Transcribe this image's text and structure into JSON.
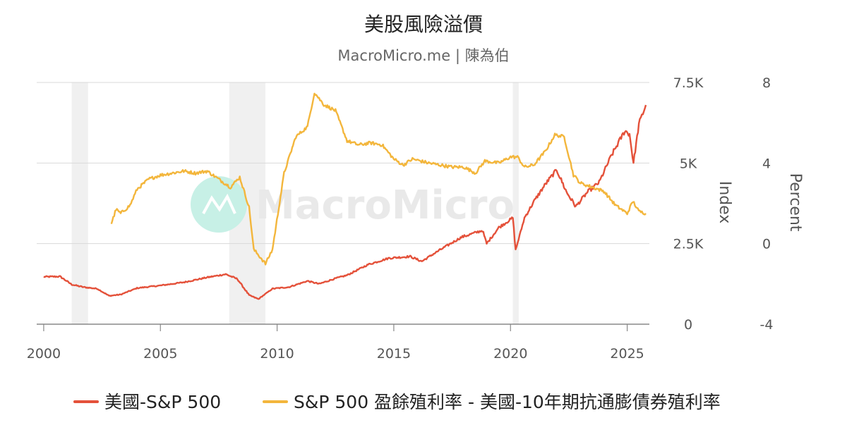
{
  "title": "美股風險溢價",
  "subtitle": "MacroMicro.me | 陳為伯",
  "watermark": "MacroMicro",
  "chart_data": {
    "type": "line",
    "title": "美股風險溢價",
    "x_ticks": [
      "2000",
      "2005",
      "2010",
      "2015",
      "2020",
      "2025"
    ],
    "x_range": [
      1999.7,
      2025.95
    ],
    "recessions": [
      [
        2001.2,
        2001.9
      ],
      [
        2007.95,
        2009.5
      ],
      [
        2020.1,
        2020.35
      ]
    ],
    "y_left": {
      "label": "Index",
      "range": [
        0,
        7500
      ],
      "ticks": [
        0,
        2500,
        5000,
        7500
      ],
      "tick_labels": [
        "0",
        "2.5K",
        "5K",
        "7.5K"
      ]
    },
    "y_right": {
      "label": "Percent",
      "range": [
        -4,
        8
      ],
      "ticks": [
        -4,
        0,
        4,
        8
      ],
      "tick_labels": [
        "-4",
        "0",
        "4",
        "8"
      ]
    },
    "grid": true,
    "legend_position": "bottom",
    "series": [
      {
        "name": "美國-S&P 500",
        "axis": "left",
        "color": "#e4513a",
        "x": [
          2000.0,
          2000.7,
          2001.2,
          2001.7,
          2002.3,
          2002.8,
          2003.3,
          2004.0,
          2005.0,
          2006.0,
          2007.0,
          2007.8,
          2008.3,
          2008.8,
          2009.2,
          2009.8,
          2010.5,
          2011.3,
          2011.8,
          2012.5,
          2013.0,
          2013.9,
          2014.8,
          2015.7,
          2016.2,
          2016.9,
          2017.9,
          2018.8,
          2018.98,
          2019.5,
          2020.1,
          2020.22,
          2020.6,
          2021.0,
          2021.5,
          2021.98,
          2022.4,
          2022.8,
          2023.3,
          2023.8,
          2024.3,
          2024.9,
          2025.1,
          2025.27,
          2025.5,
          2025.8
        ],
        "values": [
          1470,
          1480,
          1230,
          1150,
          1100,
          880,
          920,
          1120,
          1200,
          1300,
          1450,
          1550,
          1400,
          900,
          780,
          1100,
          1150,
          1340,
          1250,
          1420,
          1520,
          1850,
          2050,
          2100,
          1950,
          2270,
          2700,
          2910,
          2500,
          3000,
          3300,
          2300,
          3300,
          3800,
          4350,
          4790,
          4100,
          3650,
          4100,
          4400,
          5200,
          6000,
          5900,
          5000,
          6200,
          6800
        ]
      },
      {
        "name": "S&P 500 盈餘殖利率 - 美國-10年期抗通膨債券殖利率",
        "axis": "right",
        "color": "#f3b63c",
        "x": [
          2002.9,
          2003.1,
          2003.3,
          2003.7,
          2004.0,
          2004.5,
          2005.0,
          2005.5,
          2006.0,
          2006.5,
          2007.0,
          2007.5,
          2008.0,
          2008.4,
          2008.8,
          2009.0,
          2009.3,
          2009.5,
          2009.8,
          2010.3,
          2010.8,
          2011.3,
          2011.6,
          2012.0,
          2012.5,
          2013.0,
          2013.5,
          2014.0,
          2014.5,
          2015.0,
          2015.4,
          2015.8,
          2016.5,
          2017.0,
          2017.5,
          2018.0,
          2018.5,
          2018.9,
          2019.5,
          2020.0,
          2020.3,
          2020.6,
          2021.0,
          2021.5,
          2021.9,
          2022.3,
          2022.7,
          2023.0,
          2023.5,
          2024.0,
          2024.5,
          2025.0,
          2025.25,
          2025.5,
          2025.8
        ],
        "values": [
          1.0,
          1.7,
          1.5,
          1.9,
          2.7,
          3.2,
          3.4,
          3.5,
          3.6,
          3.5,
          3.6,
          3.2,
          2.8,
          3.3,
          1.8,
          -0.3,
          -0.7,
          -1.0,
          -0.3,
          3.5,
          5.3,
          5.8,
          7.5,
          6.9,
          6.6,
          5.1,
          4.9,
          5.0,
          4.9,
          4.2,
          3.9,
          4.2,
          4.0,
          3.9,
          3.8,
          3.8,
          3.5,
          4.1,
          4.0,
          4.3,
          4.3,
          3.8,
          3.9,
          4.6,
          5.4,
          5.3,
          3.4,
          3.0,
          2.8,
          2.6,
          1.9,
          1.5,
          2.1,
          1.6,
          1.5
        ]
      }
    ]
  }
}
